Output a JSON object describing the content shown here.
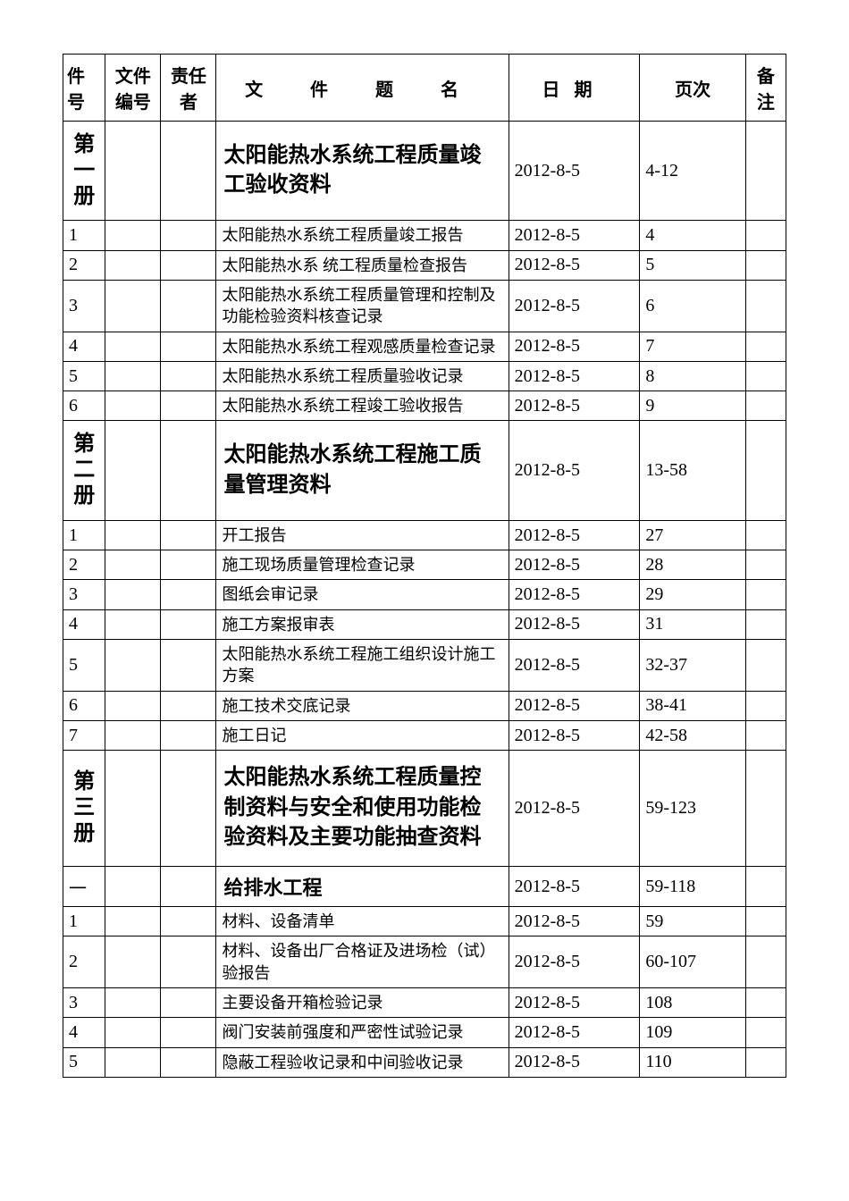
{
  "headers": {
    "col1": "件号",
    "col2": "文件编号",
    "col3": "责任者",
    "col4": "文  件  题  名",
    "col5": "日期",
    "col6": "页次",
    "col7": "备注"
  },
  "rows": [
    {
      "num": "第一册",
      "title": "太阳能热水系统工程质量竣工验收资料",
      "date": "2012-8-5",
      "page": "4-12",
      "type": "vol"
    },
    {
      "num": "1",
      "title": "太阳能热水系统工程质量竣工报告",
      "date": "2012-8-5",
      "page": "4",
      "type": "item"
    },
    {
      "num": "2",
      "title": "太阳能热水系 统工程质量检查报告",
      "date": "2012-8-5",
      "page": "5",
      "type": "item"
    },
    {
      "num": "3",
      "title": "太阳能热水系统工程质量管理和控制及功能检验资料核查记录",
      "date": "2012-8-5",
      "page": "6",
      "type": "item"
    },
    {
      "num": "4",
      "title": "太阳能热水系统工程观感质量检查记录",
      "date": "2012-8-5",
      "page": "7",
      "type": "item"
    },
    {
      "num": "5",
      "title": "太阳能热水系统工程质量验收记录",
      "date": "2012-8-5",
      "page": "8",
      "type": "item"
    },
    {
      "num": "6",
      "title": "太阳能热水系统工程竣工验收报告",
      "date": "2012-8-5",
      "page": "9",
      "type": "item"
    },
    {
      "num": "第二册",
      "title": "太阳能热水系统工程施工质量管理资料",
      "date": "2012-8-5",
      "page": "13-58",
      "type": "vol2"
    },
    {
      "num": "1",
      "title": "开工报告",
      "date": "2012-8-5",
      "page": "27",
      "type": "item"
    },
    {
      "num": "2",
      "title": "施工现场质量管理检查记录",
      "date": "2012-8-5",
      "page": "28",
      "type": "item"
    },
    {
      "num": "3",
      "title": "图纸会审记录",
      "date": "2012-8-5",
      "page": "29",
      "type": "item"
    },
    {
      "num": "4",
      "title": "施工方案报审表",
      "date": "2012-8-5",
      "page": "31",
      "type": "item"
    },
    {
      "num": "5",
      "title": "太阳能热水系统工程施工组织设计施工方案",
      "date": "2012-8-5",
      "page": "32-37",
      "type": "item"
    },
    {
      "num": "6",
      "title": "施工技术交底记录",
      "date": "2012-8-5",
      "page": "38-41",
      "type": "item"
    },
    {
      "num": "7",
      "title": "施工日记",
      "date": "2012-8-5",
      "page": "42-58",
      "type": "item"
    },
    {
      "num": "第三册",
      "title": "太阳能热水系统工程质量控制资料与安全和使用功能检验资料及主要功能抽查资料",
      "date": "2012-8-5",
      "page": "59-123",
      "type": "vol2"
    },
    {
      "num": "一",
      "title": "给排水工程",
      "date": "2012-8-5",
      "page": "59-118",
      "type": "section"
    },
    {
      "num": "1",
      "title": "材料、设备清单",
      "date": "2012-8-5",
      "page": "59",
      "type": "item"
    },
    {
      "num": "2",
      "title": "材料、设备出厂合格证及进场检（试）验报告",
      "date": "2012-8-5",
      "page": "60-107",
      "type": "item"
    },
    {
      "num": "3",
      "title": "主要设备开箱检验记录",
      "date": "2012-8-5",
      "page": "108",
      "type": "item"
    },
    {
      "num": "4",
      "title": "阀门安装前强度和严密性试验记录",
      "date": "2012-8-5",
      "page": "109",
      "type": "item"
    },
    {
      "num": "5",
      "title": "隐蔽工程验收记录和中间验收记录",
      "date": "2012-8-5",
      "page": "110",
      "type": "item"
    }
  ]
}
